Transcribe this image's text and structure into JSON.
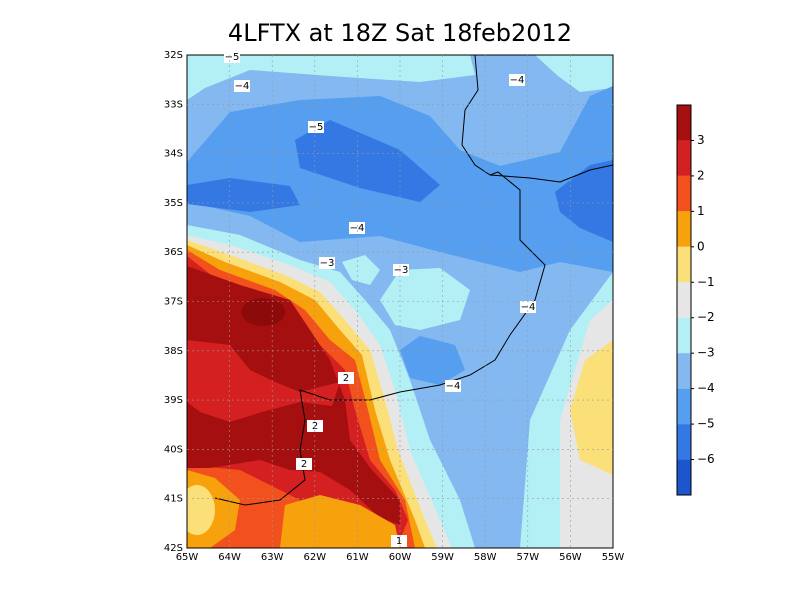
{
  "title": "4LFTX at 18Z Sat 18feb2012",
  "lat_labels": [
    "32S",
    "33S",
    "34S",
    "35S",
    "36S",
    "37S",
    "38S",
    "39S",
    "40S",
    "41S",
    "42S"
  ],
  "lon_labels": [
    "65W",
    "64W",
    "63W",
    "62W",
    "61W",
    "60W",
    "59W",
    "58W",
    "57W",
    "56W",
    "55W"
  ],
  "contour_labels": [
    "−5",
    "−4",
    "−4",
    "−5",
    "−4",
    "−3",
    "−3",
    "−4",
    "2",
    "−4",
    "2",
    "2",
    "1"
  ],
  "colorbar": {
    "colors": [
      "#a50f0f",
      "#d42020",
      "#f2501d",
      "#f7a10c",
      "#fbe07a",
      "#e6e6e6",
      "#b3f0f6",
      "#84b8f1",
      "#559ef0",
      "#3478e4",
      "#1d55cd"
    ],
    "labels": [
      "3",
      "2",
      "1",
      "0",
      "−1",
      "−2",
      "−3",
      "−4",
      "−5",
      "−6"
    ]
  }
}
